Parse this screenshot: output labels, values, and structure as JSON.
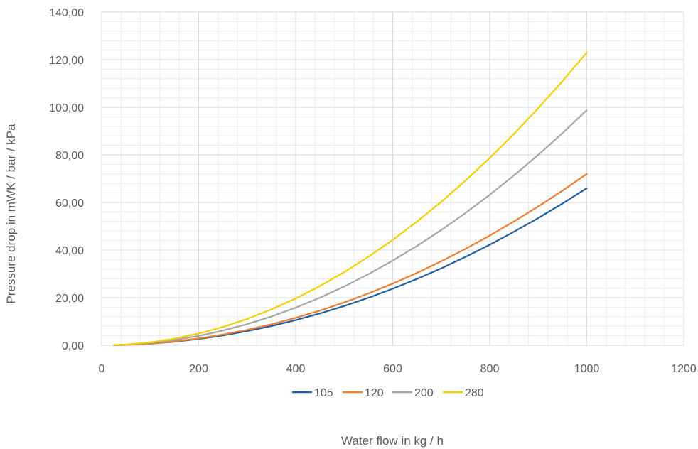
{
  "chart_data": {
    "type": "line",
    "xlabel": "Water flow in kg / h",
    "ylabel": "Pressure drop in mWK / bar / kPa",
    "xlim": [
      0,
      1200
    ],
    "ylim": [
      0,
      140
    ],
    "x_ticks": [
      "0",
      "200",
      "400",
      "600",
      "800",
      "1000",
      "1200"
    ],
    "y_ticks": [
      "0,00",
      "20,00",
      "40,00",
      "60,00",
      "80,00",
      "100,00",
      "120,00",
      "140,00"
    ],
    "grid": true,
    "legend_position": "bottom",
    "x": [
      25,
      50,
      100,
      150,
      200,
      250,
      300,
      350,
      400,
      450,
      500,
      550,
      600,
      650,
      700,
      750,
      800,
      850,
      900,
      950,
      1000
    ],
    "series": [
      {
        "name": "105",
        "color": "#1f5fa0",
        "values": [
          0.04,
          0.17,
          0.66,
          1.49,
          2.64,
          4.13,
          5.94,
          8.09,
          10.56,
          13.37,
          16.5,
          19.97,
          23.76,
          27.89,
          32.34,
          37.13,
          42.24,
          47.69,
          53.46,
          59.57,
          66.0
        ]
      },
      {
        "name": "120",
        "color": "#ed7d31",
        "values": [
          0.05,
          0.18,
          0.72,
          1.62,
          2.88,
          4.5,
          6.48,
          8.82,
          11.52,
          14.58,
          18.0,
          21.78,
          25.92,
          30.42,
          35.28,
          40.5,
          46.08,
          52.02,
          58.32,
          64.98,
          72.0
        ]
      },
      {
        "name": "200",
        "color": "#a5a5a5",
        "values": [
          0.06,
          0.25,
          0.99,
          2.22,
          3.95,
          6.17,
          8.89,
          12.1,
          15.81,
          20.01,
          24.7,
          29.89,
          35.57,
          41.74,
          48.41,
          55.58,
          63.23,
          71.38,
          80.03,
          89.17,
          98.8
        ]
      },
      {
        "name": "280",
        "color": "#f2cf00",
        "values": [
          0.08,
          0.31,
          1.23,
          2.77,
          4.92,
          7.69,
          11.07,
          15.07,
          19.68,
          24.91,
          30.75,
          37.21,
          44.28,
          51.97,
          60.27,
          69.19,
          78.72,
          88.87,
          99.63,
          111.01,
          123.0
        ]
      }
    ]
  }
}
